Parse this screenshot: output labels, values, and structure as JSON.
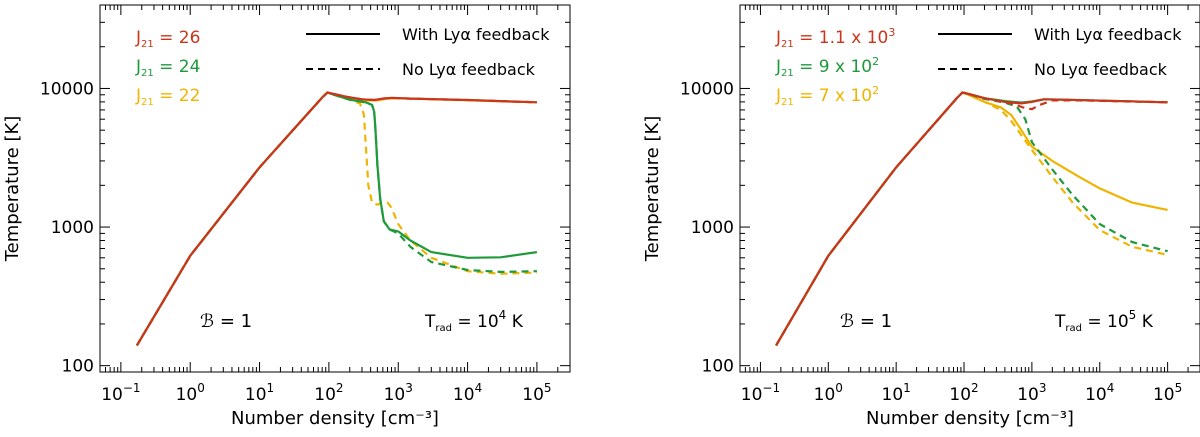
{
  "chart_data": [
    {
      "type": "line",
      "xscale": "log",
      "yscale": "log",
      "xlim": [
        0.05,
        300000
      ],
      "ylim": [
        90,
        40000
      ],
      "xlabel": "Number density [cm⁻³]",
      "ylabel": "Temperature [K]",
      "x_ticks": [
        {
          "v": 0.1,
          "b": "10",
          "e": "−1"
        },
        {
          "v": 1,
          "b": "10",
          "e": "0"
        },
        {
          "v": 10,
          "b": "10",
          "e": "1"
        },
        {
          "v": 100,
          "b": "10",
          "e": "2"
        },
        {
          "v": 1000,
          "b": "10",
          "e": "3"
        },
        {
          "v": 10000,
          "b": "10",
          "e": "4"
        },
        {
          "v": 100000,
          "b": "10",
          "e": "5"
        }
      ],
      "y_ticks": [
        {
          "v": 100,
          "label": "100"
        },
        {
          "v": 1000,
          "label": "1000"
        },
        {
          "v": 10000,
          "label": "10000"
        }
      ],
      "legend_style": [
        {
          "label": "With Lyα feedback",
          "dash": "solid"
        },
        {
          "label": "No Lyα feedback",
          "dash": "dashed"
        }
      ],
      "annotation_b": "ℬ = 1",
      "annotation_trad": {
        "prefix": "T",
        "sub": "rad",
        "text": " =  10",
        "sup": "4",
        "unit": " K"
      },
      "series": [
        {
          "name": "J21 = 26",
          "label_prefix": "J",
          "label_sub": "21",
          "label_value": " = 26",
          "color": "#c8361b",
          "solid": [
            [
              0.17,
              140
            ],
            [
              1,
              620
            ],
            [
              10,
              2700
            ],
            [
              80,
              8600
            ],
            [
              95,
              9350
            ],
            [
              110,
              9200
            ],
            [
              180,
              8700
            ],
            [
              300,
              8350
            ],
            [
              450,
              8250
            ],
            [
              600,
              8450
            ],
            [
              800,
              8550
            ],
            [
              1500,
              8450
            ],
            [
              10000,
              8250
            ],
            [
              100000,
              7950
            ]
          ],
          "dashed": [
            [
              0.17,
              140
            ],
            [
              1,
              620
            ],
            [
              10,
              2700
            ],
            [
              80,
              8600
            ],
            [
              95,
              9350
            ],
            [
              110,
              9200
            ],
            [
              180,
              8700
            ],
            [
              300,
              8350
            ],
            [
              450,
              8250
            ],
            [
              600,
              8450
            ],
            [
              800,
              8550
            ],
            [
              1500,
              8450
            ],
            [
              10000,
              8250
            ],
            [
              100000,
              7950
            ]
          ]
        },
        {
          "name": "J21 = 24",
          "label_prefix": "J",
          "label_sub": "21",
          "label_value": " = 24",
          "color": "#1f9a3a",
          "solid": [
            [
              0.17,
              140
            ],
            [
              1,
              620
            ],
            [
              10,
              2700
            ],
            [
              80,
              8600
            ],
            [
              95,
              9350
            ],
            [
              110,
              9100
            ],
            [
              200,
              8300
            ],
            [
              350,
              7900
            ],
            [
              420,
              7600
            ],
            [
              450,
              6800
            ],
            [
              470,
              5000
            ],
            [
              500,
              2800
            ],
            [
              550,
              1600
            ],
            [
              620,
              1100
            ],
            [
              750,
              960
            ],
            [
              1000,
              930
            ],
            [
              1500,
              800
            ],
            [
              3000,
              660
            ],
            [
              10000,
              600
            ],
            [
              30000,
              605
            ],
            [
              100000,
              660
            ]
          ],
          "dashed": [
            [
              0.17,
              140
            ],
            [
              1,
              620
            ],
            [
              10,
              2700
            ],
            [
              80,
              8600
            ],
            [
              95,
              9350
            ],
            [
              110,
              9100
            ],
            [
              200,
              8300
            ],
            [
              350,
              7900
            ],
            [
              420,
              7600
            ],
            [
              450,
              6800
            ],
            [
              470,
              5000
            ],
            [
              500,
              2800
            ],
            [
              550,
              1600
            ],
            [
              620,
              1100
            ],
            [
              750,
              960
            ],
            [
              1000,
              900
            ],
            [
              1500,
              720
            ],
            [
              3000,
              560
            ],
            [
              10000,
              490
            ],
            [
              30000,
              475
            ],
            [
              100000,
              480
            ]
          ]
        },
        {
          "name": "J21 = 22",
          "label_prefix": "J",
          "label_sub": "21",
          "label_value": " = 22",
          "color": "#f0b400",
          "solid": [
            [
              0.17,
              140
            ],
            [
              1,
              620
            ],
            [
              10,
              2700
            ],
            [
              80,
              8600
            ],
            [
              95,
              9350
            ],
            [
              110,
              9150
            ],
            [
              200,
              8500
            ],
            [
              300,
              8200
            ],
            [
              500,
              8200
            ],
            [
              700,
              8450
            ],
            [
              1000,
              8500
            ],
            [
              5000,
              8300
            ],
            [
              100000,
              7950
            ]
          ],
          "dashed": [
            [
              0.17,
              140
            ],
            [
              1,
              620
            ],
            [
              10,
              2700
            ],
            [
              80,
              8600
            ],
            [
              95,
              9350
            ],
            [
              110,
              9100
            ],
            [
              200,
              8300
            ],
            [
              280,
              7800
            ],
            [
              320,
              6500
            ],
            [
              340,
              4000
            ],
            [
              370,
              2000
            ],
            [
              420,
              1500
            ],
            [
              500,
              1450
            ],
            [
              600,
              1500
            ],
            [
              700,
              1500
            ],
            [
              800,
              1380
            ],
            [
              1000,
              1050
            ],
            [
              1500,
              800
            ],
            [
              3000,
              600
            ],
            [
              10000,
              480
            ],
            [
              30000,
              460
            ],
            [
              100000,
              470
            ]
          ]
        }
      ]
    },
    {
      "type": "line",
      "xscale": "log",
      "yscale": "log",
      "xlim": [
        0.05,
        300000
      ],
      "ylim": [
        90,
        40000
      ],
      "xlabel": "Number density [cm⁻³]",
      "ylabel": "Temperature [K]",
      "x_ticks": [
        {
          "v": 0.1,
          "b": "10",
          "e": "−1"
        },
        {
          "v": 1,
          "b": "10",
          "e": "0"
        },
        {
          "v": 10,
          "b": "10",
          "e": "1"
        },
        {
          "v": 100,
          "b": "10",
          "e": "2"
        },
        {
          "v": 1000,
          "b": "10",
          "e": "3"
        },
        {
          "v": 10000,
          "b": "10",
          "e": "4"
        },
        {
          "v": 100000,
          "b": "10",
          "e": "5"
        }
      ],
      "y_ticks": [
        {
          "v": 100,
          "label": "100"
        },
        {
          "v": 1000,
          "label": "1000"
        },
        {
          "v": 10000,
          "label": "10000"
        }
      ],
      "legend_style": [
        {
          "label": "With Lyα feedback",
          "dash": "solid"
        },
        {
          "label": "No Lyα feedback",
          "dash": "dashed"
        }
      ],
      "annotation_b": "ℬ = 1",
      "annotation_trad": {
        "prefix": "T",
        "sub": "rad",
        "text": " =  10",
        "sup": "5",
        "unit": " K"
      },
      "series": [
        {
          "name": "J21 = 1.1 x 10^3",
          "label_prefix": "J",
          "label_sub": "21",
          "label_value": " = 1.1 x 10",
          "label_sup": "3",
          "color": "#c8361b",
          "solid": [
            [
              0.17,
              140
            ],
            [
              1,
              620
            ],
            [
              10,
              2700
            ],
            [
              80,
              8600
            ],
            [
              95,
              9350
            ],
            [
              110,
              9200
            ],
            [
              200,
              8500
            ],
            [
              400,
              8000
            ],
            [
              700,
              7800
            ],
            [
              1000,
              8000
            ],
            [
              1500,
              8350
            ],
            [
              3000,
              8300
            ],
            [
              100000,
              7950
            ]
          ],
          "dashed": [
            [
              0.17,
              140
            ],
            [
              1,
              620
            ],
            [
              10,
              2700
            ],
            [
              80,
              8600
            ],
            [
              95,
              9350
            ],
            [
              110,
              9200
            ],
            [
              200,
              8500
            ],
            [
              500,
              7800
            ],
            [
              800,
              7200
            ],
            [
              1000,
              7100
            ],
            [
              1300,
              7600
            ],
            [
              2000,
              8200
            ],
            [
              5000,
              8200
            ],
            [
              100000,
              7950
            ]
          ]
        },
        {
          "name": "J21 = 9 x 10^2",
          "label_prefix": "J",
          "label_sub": "21",
          "label_value": " = 9 x 10",
          "label_sup": "2",
          "color": "#1f9a3a",
          "solid": [
            [
              0.17,
              140
            ],
            [
              1,
              620
            ],
            [
              10,
              2700
            ],
            [
              80,
              8600
            ],
            [
              95,
              9350
            ],
            [
              110,
              9200
            ],
            [
              200,
              8500
            ],
            [
              400,
              8100
            ],
            [
              700,
              7900
            ],
            [
              1000,
              8050
            ],
            [
              1500,
              8350
            ],
            [
              3000,
              8300
            ],
            [
              100000,
              7950
            ]
          ],
          "dashed": [
            [
              0.17,
              140
            ],
            [
              1,
              620
            ],
            [
              10,
              2700
            ],
            [
              80,
              8600
            ],
            [
              95,
              9350
            ],
            [
              110,
              9200
            ],
            [
              200,
              8400
            ],
            [
              400,
              7900
            ],
            [
              600,
              7400
            ],
            [
              800,
              6000
            ],
            [
              1000,
              4100
            ],
            [
              2000,
              2600
            ],
            [
              4000,
              1700
            ],
            [
              10000,
              1050
            ],
            [
              30000,
              780
            ],
            [
              100000,
              670
            ]
          ]
        },
        {
          "name": "J21 = 7 x 10^2",
          "label_prefix": "J",
          "label_sub": "21",
          "label_value": " = 7 x 10",
          "label_sup": "2",
          "color": "#f0b400",
          "solid": [
            [
              0.17,
              140
            ],
            [
              1,
              620
            ],
            [
              10,
              2700
            ],
            [
              80,
              8600
            ],
            [
              95,
              9350
            ],
            [
              110,
              9100
            ],
            [
              200,
              8000
            ],
            [
              350,
              7300
            ],
            [
              500,
              6400
            ],
            [
              700,
              5000
            ],
            [
              1000,
              3800
            ],
            [
              2000,
              3000
            ],
            [
              5000,
              2300
            ],
            [
              10000,
              1900
            ],
            [
              30000,
              1500
            ],
            [
              100000,
              1330
            ]
          ],
          "dashed": [
            [
              0.17,
              140
            ],
            [
              1,
              620
            ],
            [
              10,
              2700
            ],
            [
              80,
              8600
            ],
            [
              95,
              9350
            ],
            [
              110,
              9100
            ],
            [
              200,
              8000
            ],
            [
              350,
              7000
            ],
            [
              500,
              5800
            ],
            [
              700,
              4600
            ],
            [
              1000,
              3600
            ],
            [
              2000,
              2300
            ],
            [
              4000,
              1500
            ],
            [
              10000,
              950
            ],
            [
              30000,
              720
            ],
            [
              100000,
              630
            ]
          ]
        }
      ]
    }
  ]
}
